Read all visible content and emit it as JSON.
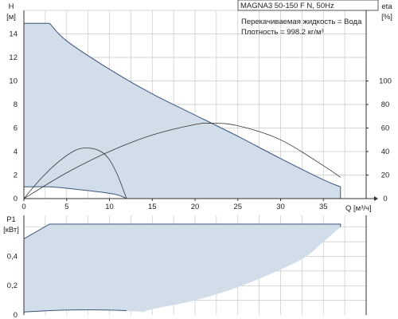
{
  "chart_data": [
    {
      "type": "line",
      "panel": "top",
      "title": "MAGNA3 50-150 F N, 50Hz",
      "annotations": [
        "Перекачиваемая жидкость = Вода",
        "Плотность = 998.2 кг/м³"
      ],
      "xlabel": "Q [м³/ч]",
      "ylabel_left": [
        "H",
        "[м]"
      ],
      "ylabel_right": [
        "eta",
        "[%]"
      ],
      "xlim": [
        0,
        40
      ],
      "ylim": [
        0,
        16
      ],
      "ylim_right": [
        0,
        160
      ],
      "x_ticks": [
        "0",
        "5",
        "10",
        "15",
        "20",
        "25",
        "30",
        "35"
      ],
      "y_ticks": [
        "0",
        "2",
        "4",
        "6",
        "8",
        "10",
        "12",
        "14"
      ],
      "y_ticks_right": [
        "0",
        "20",
        "40",
        "60",
        "80",
        "100"
      ],
      "grid": true,
      "colors": {
        "area": "#d1dde9",
        "curve": "#3b557d",
        "eta": "#333333"
      },
      "series": [
        {
          "role": "max-speed-area",
          "x": [
            0,
            3,
            5,
            10,
            15,
            20,
            25,
            30,
            35,
            37
          ],
          "y": [
            14.9,
            14.9,
            13.4,
            11.0,
            8.9,
            7.1,
            5.3,
            3.4,
            1.6,
            1.0
          ]
        },
        {
          "role": "min-speed-curve",
          "x": [
            0,
            3,
            6,
            9,
            11,
            12
          ],
          "y": [
            1.0,
            1.0,
            0.8,
            0.55,
            0.3,
            0.0
          ]
        },
        {
          "role": "eta-max",
          "axis": "right",
          "x": [
            0,
            5,
            10,
            15,
            20,
            22,
            25,
            30,
            35,
            37
          ],
          "y": [
            0,
            22,
            40,
            54,
            63,
            64,
            62,
            50,
            28,
            18
          ]
        },
        {
          "role": "eta-min",
          "axis": "right",
          "x": [
            0,
            2,
            4,
            6,
            7.5,
            9,
            10,
            11,
            12
          ],
          "y": [
            0,
            17,
            31,
            41,
            43,
            40,
            33,
            19,
            0
          ]
        }
      ]
    },
    {
      "type": "area",
      "panel": "bottom",
      "ylabel": [
        "P1",
        "[кВт]"
      ],
      "xlim": [
        0,
        40
      ],
      "ylim": [
        0,
        0.68
      ],
      "y_ticks": [
        "0",
        "0,2",
        "0,4"
      ],
      "grid": true,
      "colors": {
        "area": "#d1dde9",
        "curve": "#3b557d"
      },
      "series": [
        {
          "role": "max-power-area",
          "x": [
            0,
            3,
            37,
            37,
            35,
            33,
            30,
            25,
            20,
            15,
            14
          ],
          "y": [
            0.52,
            0.62,
            0.62,
            0.6,
            0.5,
            0.4,
            0.31,
            0.19,
            0.1,
            0.04,
            0.02
          ]
        },
        {
          "role": "min-power-curve",
          "x": [
            0,
            3,
            6,
            9,
            12
          ],
          "y": [
            0.02,
            0.03,
            0.035,
            0.035,
            0.03
          ]
        }
      ]
    }
  ]
}
